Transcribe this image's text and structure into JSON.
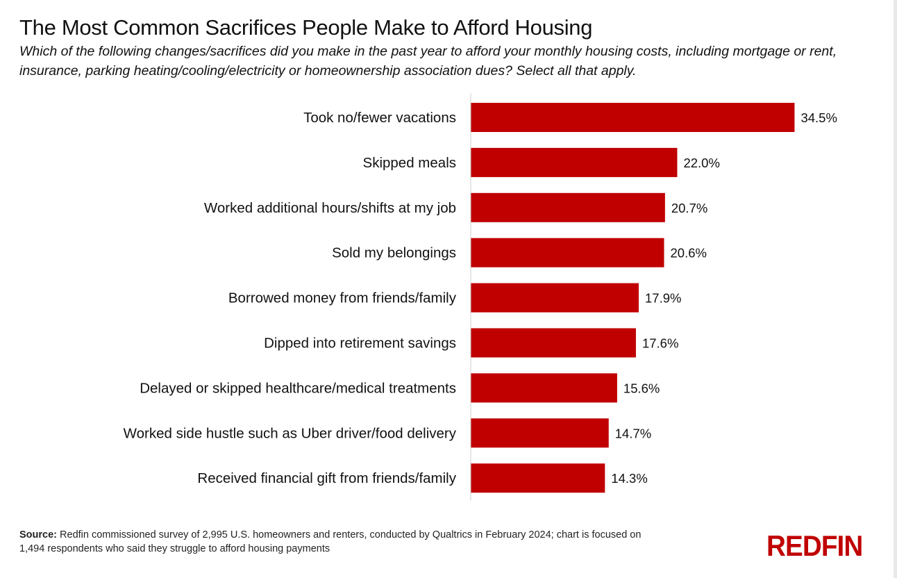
{
  "title": "The Most Common Sacrifices People Make to Afford Housing",
  "subtitle": "Which of the following changes/sacrifices did you make in the past year to afford your monthly housing costs, including mortgage or rent, insurance, parking heating/cooling/electricity or homeownership association dues? Select all that apply.",
  "colors": {
    "bar": "#c00000",
    "axis": "#cccccc",
    "text": "#111111"
  },
  "chart_data": {
    "type": "bar",
    "orientation": "horizontal",
    "categories": [
      "Took no/fewer vacations",
      "Skipped meals",
      "Worked additional hours/shifts at my job",
      "Sold my belongings",
      "Borrowed money from friends/family",
      "Dipped into retirement savings",
      "Delayed or skipped healthcare/medical treatments",
      "Worked side hustle such as Uber driver/food delivery",
      "Received financial gift from friends/family"
    ],
    "values": [
      34.5,
      22.0,
      20.7,
      20.6,
      17.9,
      17.6,
      15.6,
      14.7,
      14.3
    ],
    "value_labels": [
      "34.5%",
      "22.0%",
      "20.7%",
      "20.6%",
      "17.9%",
      "17.6%",
      "15.6%",
      "14.7%",
      "14.3%"
    ],
    "unit": "%",
    "xlim": [
      0,
      40
    ],
    "xlabel": "",
    "ylabel": "",
    "grid": false,
    "legend": "none"
  },
  "source": {
    "label": "Source:",
    "text": "Redfin commissioned survey of 2,995 U.S. homeowners and renters, conducted by Qualtrics in February 2024; chart is focused on 1,494 respondents who said they struggle to afford housing payments"
  },
  "logo": {
    "text": "REDFIN"
  }
}
